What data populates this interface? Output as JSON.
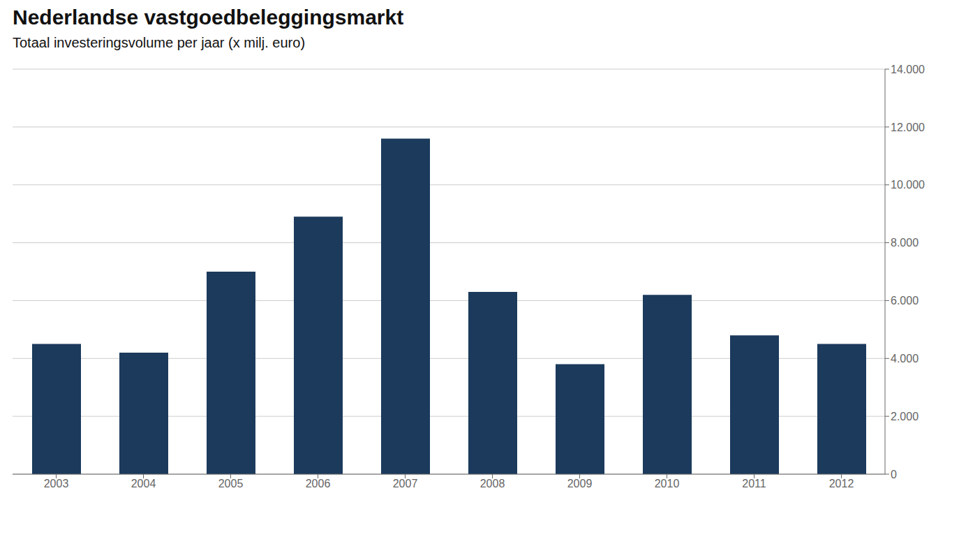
{
  "chart_data": {
    "type": "bar",
    "title": "Nederlandse vastgoedbeleggingsmarkt",
    "subtitle": "Totaal investeringsvolume per jaar  (x milj. euro)",
    "categories": [
      "2003",
      "2004",
      "2005",
      "2006",
      "2007",
      "2008",
      "2009",
      "2010",
      "2011",
      "2012"
    ],
    "values": [
      4500,
      4200,
      7000,
      8900,
      11600,
      6300,
      3800,
      6200,
      4800,
      4500
    ],
    "color": "#1b3a5c",
    "ylim": [
      0,
      14000
    ],
    "yticks": [
      0,
      {
        "value": 2000,
        "label": "2.000"
      },
      {
        "value": 4000,
        "label": "4.000"
      },
      {
        "value": 6000,
        "label": "6.000"
      },
      {
        "value": 8000,
        "label": "8.000"
      },
      {
        "value": 10000,
        "label": "10.000"
      },
      {
        "value": 12000,
        "label": "12.000"
      },
      {
        "value": 14000,
        "label": "14.000"
      }
    ],
    "grid": true
  }
}
